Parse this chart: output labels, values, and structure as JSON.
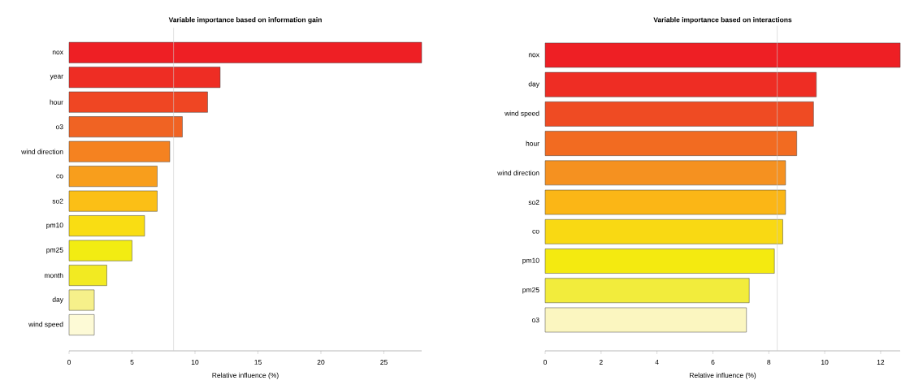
{
  "chart_data": [
    {
      "type": "bar",
      "orientation": "horizontal",
      "title": "Variable importance based on information gain",
      "xlabel": "Relative influence (%)",
      "categories": [
        "nox",
        "year",
        "hour",
        "o3",
        "wind direction",
        "co",
        "so2",
        "pm10",
        "pm25",
        "month",
        "day",
        "wind speed"
      ],
      "values": [
        28.0,
        12.0,
        11.0,
        9.0,
        8.0,
        7.0,
        7.0,
        6.0,
        5.0,
        3.0,
        2.0,
        2.0
      ],
      "colors": [
        "#ee1f24",
        "#ee2d24",
        "#ef4623",
        "#f06323",
        "#f58220",
        "#f89e1c",
        "#fbbf16",
        "#f9dd13",
        "#f2ec12",
        "#f2ea22",
        "#f6f08a",
        "#fdfad6"
      ],
      "xlim": [
        0,
        28
      ],
      "xticks": [
        0,
        5,
        10,
        15,
        20,
        25
      ],
      "ref_lines": [
        {
          "axis": "x",
          "value": 8.3,
          "color": "#cccccc"
        }
      ]
    },
    {
      "type": "bar",
      "orientation": "horizontal",
      "title": "Variable importance based on interactions",
      "xlabel": "Relative influence (%)",
      "categories": [
        "nox",
        "day",
        "wind speed",
        "hour",
        "wind direction",
        "so2",
        "co",
        "pm10",
        "pm25",
        "o3"
      ],
      "values": [
        12.7,
        9.7,
        9.6,
        9.0,
        8.6,
        8.6,
        8.5,
        8.2,
        7.3,
        7.2
      ],
      "colors": [
        "#ee1f24",
        "#ee2d24",
        "#ef4b23",
        "#f26b21",
        "#f59120",
        "#fbb616",
        "#f9d913",
        "#f4ea10",
        "#f2ec3c",
        "#fbf6c0"
      ],
      "xlim": [
        0,
        12.7
      ],
      "xticks": [
        0,
        2,
        4,
        6,
        8,
        10,
        12
      ],
      "ref_lines": [
        {
          "axis": "x",
          "value": 8.3,
          "color": "#cccccc"
        }
      ]
    }
  ]
}
